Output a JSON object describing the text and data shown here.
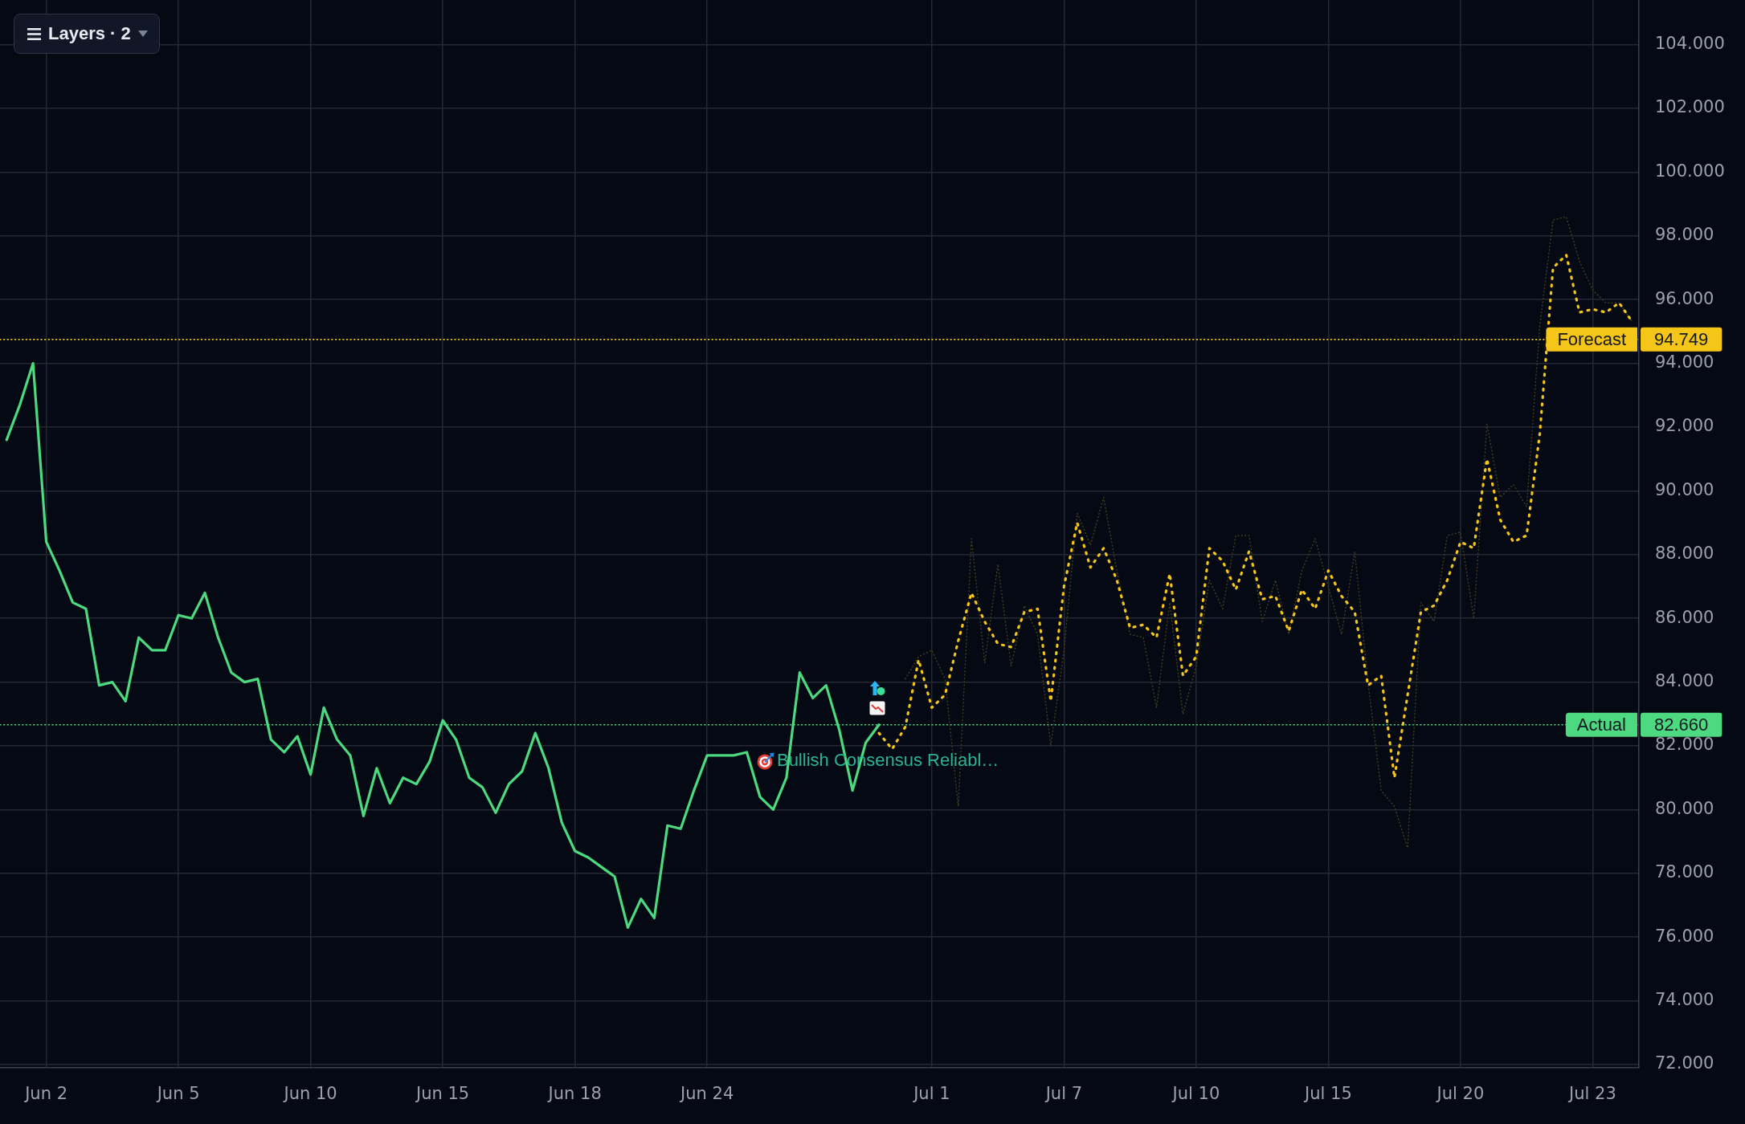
{
  "chart_data": {
    "type": "line",
    "categories": [
      null,
      null,
      null,
      "Jun 2",
      null,
      null,
      null,
      null,
      null,
      null,
      null,
      null,
      null,
      "Jun 5",
      null,
      null,
      null,
      null,
      null,
      null,
      null,
      null,
      null,
      "Jun 10",
      null,
      null,
      null,
      null,
      null,
      null,
      null,
      null,
      null,
      "Jun 15",
      null,
      null,
      null,
      null,
      null,
      null,
      null,
      null,
      null,
      "Jun 18",
      null,
      null,
      null,
      null,
      null,
      null,
      null,
      null,
      null,
      "Jun 24",
      null,
      null,
      null,
      null,
      null,
      null,
      null,
      null,
      null,
      null,
      null,
      null,
      null,
      null,
      null,
      null,
      "Jul 1",
      null,
      null,
      null,
      null,
      null,
      null,
      null,
      null,
      null,
      "Jul 7",
      null,
      null,
      null,
      null,
      null,
      null,
      null,
      null,
      null,
      "Jul 10",
      null,
      null,
      null,
      null,
      null,
      null,
      null,
      null,
      null,
      "Jul 15",
      null,
      null,
      null,
      null,
      null,
      null,
      null,
      null,
      null,
      "Jul 20",
      null,
      null,
      null,
      null,
      null,
      null,
      null,
      null,
      null,
      "Jul 23",
      null,
      null,
      null
    ],
    "series": [
      {
        "color": "#4cd97f",
        "line_style": "solid",
        "values": [
          91.6,
          92.7,
          94.0,
          88.4,
          87.5,
          86.5,
          86.3,
          83.9,
          84.0,
          83.4,
          85.4,
          85.0,
          85.0,
          86.1,
          86.0,
          86.8,
          85.4,
          84.3,
          84.0,
          84.1,
          82.2,
          81.8,
          82.3,
          81.1,
          83.2,
          82.2,
          81.7,
          79.8,
          81.3,
          80.2,
          81.0,
          80.8,
          81.5,
          82.8,
          82.2,
          81.0,
          80.7,
          79.9,
          80.8,
          81.2,
          82.4,
          81.3,
          79.6,
          78.7,
          78.5,
          78.2,
          77.9,
          76.3,
          77.2,
          76.6,
          79.5,
          79.4,
          80.6,
          81.7,
          81.7,
          81.7,
          81.8,
          80.4,
          80.0,
          81.0,
          84.3,
          83.5,
          83.9,
          82.5,
          80.6,
          82.1,
          82.66,
          null,
          null,
          null,
          null,
          null,
          null,
          null,
          null,
          null,
          null,
          null,
          null,
          null,
          null,
          null,
          null,
          null,
          null,
          null,
          null,
          null,
          null,
          null,
          null,
          null,
          null,
          null,
          null,
          null,
          null,
          null,
          null,
          null,
          null,
          null,
          null,
          null,
          null,
          null,
          null,
          null,
          null,
          null,
          null,
          null,
          null,
          null,
          null,
          null,
          null,
          null,
          null,
          null,
          null,
          null,
          null,
          null
        ]
      },
      {
        "color": "#f5c518",
        "line_style": "dotted",
        "values": [
          null,
          null,
          null,
          null,
          null,
          null,
          null,
          null,
          null,
          null,
          null,
          null,
          null,
          null,
          null,
          null,
          null,
          null,
          null,
          null,
          null,
          null,
          null,
          null,
          null,
          null,
          null,
          null,
          null,
          null,
          null,
          null,
          null,
          null,
          null,
          null,
          null,
          null,
          null,
          null,
          null,
          null,
          null,
          null,
          null,
          null,
          null,
          null,
          null,
          null,
          null,
          null,
          null,
          null,
          null,
          null,
          null,
          null,
          null,
          null,
          null,
          null,
          null,
          null,
          null,
          null,
          82.4,
          81.9,
          82.6,
          84.7,
          83.2,
          83.6,
          85.3,
          86.8,
          85.9,
          85.2,
          85.1,
          86.2,
          86.3,
          83.4,
          87.0,
          89.0,
          87.6,
          88.2,
          87.2,
          85.7,
          85.8,
          85.4,
          87.4,
          84.2,
          84.8,
          88.2,
          87.8,
          86.9,
          88.1,
          86.6,
          86.7,
          85.6,
          86.9,
          86.3,
          87.5,
          86.7,
          86.2,
          83.9,
          84.2,
          81.0,
          83.6,
          86.2,
          86.4,
          87.2,
          88.4,
          88.2,
          91.0,
          89.1,
          88.4,
          88.6,
          91.8,
          97.0,
          97.4,
          95.6,
          95.7,
          95.6,
          95.9,
          95.3
        ]
      },
      {
        "color": "#403b1f",
        "line_style": "dotted",
        "values": [
          null,
          null,
          null,
          null,
          null,
          null,
          null,
          null,
          null,
          null,
          null,
          null,
          null,
          null,
          null,
          null,
          null,
          null,
          null,
          null,
          null,
          null,
          null,
          null,
          null,
          null,
          null,
          null,
          null,
          null,
          null,
          null,
          null,
          null,
          null,
          null,
          null,
          null,
          null,
          null,
          null,
          null,
          null,
          null,
          null,
          null,
          null,
          null,
          null,
          null,
          null,
          null,
          null,
          null,
          null,
          null,
          null,
          null,
          null,
          null,
          null,
          null,
          null,
          null,
          null,
          null,
          null,
          null,
          84.1,
          84.8,
          85.0,
          84.1,
          80.1,
          88.5,
          84.6,
          87.7,
          84.5,
          86.4,
          85.5,
          82.0,
          85.0,
          89.3,
          88.3,
          89.8,
          87.5,
          85.5,
          85.4,
          83.2,
          86.5,
          83.0,
          84.5,
          87.2,
          86.3,
          88.6,
          88.6,
          85.9,
          87.2,
          85.5,
          87.5,
          88.5,
          87.0,
          85.5,
          88.1,
          84.0,
          80.6,
          80.1,
          78.8,
          86.5,
          85.9,
          88.6,
          88.7,
          86.0,
          92.1,
          89.8,
          90.2,
          89.5,
          95.2,
          98.5,
          98.6,
          97.2,
          96.3,
          95.9,
          95.9,
          95.3
        ]
      }
    ],
    "ylim": [
      71.9,
      105.4
    ],
    "yticks": [
      {
        "value": 72,
        "label": "72.000"
      },
      {
        "value": 74,
        "label": "74.000"
      },
      {
        "value": 76,
        "label": "76.000"
      },
      {
        "value": 78,
        "label": "78.000"
      },
      {
        "value": 80,
        "label": "80.000"
      },
      {
        "value": 82,
        "label": "82.000"
      },
      {
        "value": 84,
        "label": "84.000"
      },
      {
        "value": 86,
        "label": "86.000"
      },
      {
        "value": 88,
        "label": "88.000"
      },
      {
        "value": 90,
        "label": "90.000"
      },
      {
        "value": 92,
        "label": "92.000"
      },
      {
        "value": 94,
        "label": "94.000"
      },
      {
        "value": 96,
        "label": "96.000"
      },
      {
        "value": 98,
        "label": "98.000"
      },
      {
        "value": 100,
        "label": "100.000"
      },
      {
        "value": 102,
        "label": "102.000"
      },
      {
        "value": 104,
        "label": "104.000"
      }
    ],
    "ref_lines": [
      {
        "axis": "y",
        "value": 94.749,
        "label": "Forecast",
        "color": "#f5c518",
        "line_style": "dotted"
      },
      {
        "axis": "y",
        "value": 82.66,
        "label": "Actual",
        "color": "#4cd97f",
        "line_style": "dotted"
      }
    ],
    "annotations": [
      "Layers · 2",
      "Bullish Consensus Reliabl…",
      "94.749",
      "82.660"
    ],
    "grid": true
  }
}
